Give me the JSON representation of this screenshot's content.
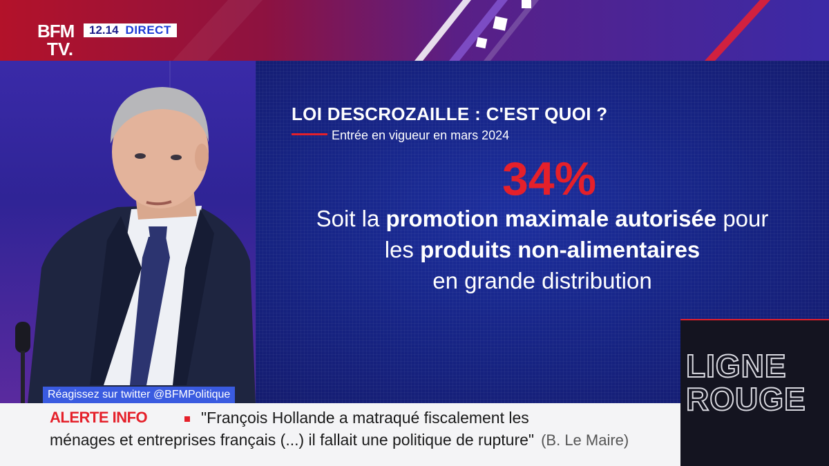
{
  "channel": {
    "logo_line1": "BFM",
    "logo_line2": "TV.",
    "time": "12.14",
    "live_label": "DIRECT"
  },
  "infographic": {
    "headline": "LOI DESCROZAILLE : C'EST QUOI ?",
    "subtitle": "Entrée en vigueur en mars 2024",
    "figure": "34%",
    "text_part1": "Soit la ",
    "text_bold1": "promotion maximale autorisée",
    "text_part2": " pour",
    "text_part3": "les ",
    "text_bold2": "produits non-alimentaires",
    "text_part4": "en grande distribution",
    "accent_color": "#e5202a"
  },
  "social": {
    "label": "Réagissez sur twitter @BFMPolitique"
  },
  "ticker": {
    "alert_label": "ALERTE INFO",
    "quote_line1": "\"François Hollande a matraqué fiscalement les",
    "quote_line2": "ménages et entreprises français (...) il fallait une politique de rupture\"",
    "author": "(B. Le Maire)"
  },
  "program": {
    "line1": "LIGNE",
    "line2": "ROUGE"
  }
}
